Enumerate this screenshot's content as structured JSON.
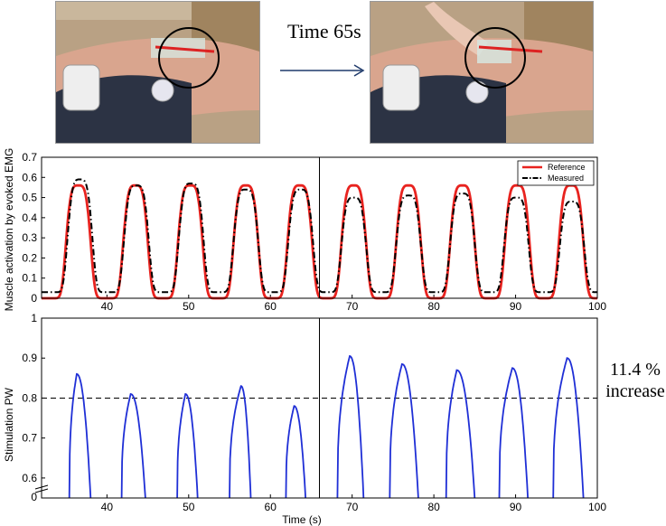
{
  "photos": {
    "time_label": "Time 65s"
  },
  "annotation": {
    "line1": "11.4 %",
    "line2": "increase"
  },
  "colors": {
    "reference": "#e8231f",
    "measured": "#000000",
    "pw": "#1f2fd6"
  },
  "chart_data": [
    {
      "type": "line",
      "title": "",
      "xlabel": "",
      "ylabel": "Muscle activation by evoked EMG",
      "xlim": [
        32,
        100
      ],
      "ylim": [
        0,
        0.7
      ],
      "x_ticks": [
        40,
        50,
        60,
        70,
        80,
        90,
        100
      ],
      "y_ticks": [
        0,
        0.1,
        0.2,
        0.3,
        0.4,
        0.5,
        0.6,
        0.7
      ],
      "y_tick_labels": [
        "0",
        "0.1",
        "0.2",
        "0.3",
        "0.4",
        "0.5",
        "0.6",
        "0.7"
      ],
      "legend": "top-right",
      "divider_x": 66,
      "series": [
        {
          "name": "Reference",
          "style": "solid",
          "baseline": 0.0,
          "peaks": [
            {
              "t": 36.5,
              "amp": 0.56
            },
            {
              "t": 43.5,
              "amp": 0.56
            },
            {
              "t": 50.2,
              "amp": 0.56
            },
            {
              "t": 57.0,
              "amp": 0.56
            },
            {
              "t": 63.6,
              "amp": 0.56
            },
            {
              "t": 70.2,
              "amp": 0.56
            },
            {
              "t": 76.9,
              "amp": 0.56
            },
            {
              "t": 83.5,
              "amp": 0.56
            },
            {
              "t": 90.2,
              "amp": 0.56
            },
            {
              "t": 96.8,
              "amp": 0.56
            }
          ]
        },
        {
          "name": "Measured",
          "style": "dash-dot",
          "baseline": 0.03,
          "peaks": [
            {
              "t": 36.7,
              "amp": 0.59
            },
            {
              "t": 43.6,
              "amp": 0.56
            },
            {
              "t": 50.3,
              "amp": 0.57
            },
            {
              "t": 57.0,
              "amp": 0.54
            },
            {
              "t": 63.7,
              "amp": 0.54
            },
            {
              "t": 70.2,
              "amp": 0.5
            },
            {
              "t": 76.9,
              "amp": 0.51
            },
            {
              "t": 83.5,
              "amp": 0.52
            },
            {
              "t": 90.1,
              "amp": 0.5
            },
            {
              "t": 96.9,
              "amp": 0.48
            }
          ]
        }
      ]
    },
    {
      "type": "line",
      "title": "",
      "xlabel": "Time (s)",
      "ylabel": "Stimulation PW",
      "xlim": [
        32,
        100
      ],
      "ylim": [
        0.55,
        1.0
      ],
      "x_ticks": [
        40,
        50,
        60,
        70,
        80,
        90,
        100
      ],
      "y_ticks": [
        0.6,
        0.7,
        0.8,
        0.9,
        1.0
      ],
      "y_tick_labels": [
        "0.6",
        "0.7",
        "0.8",
        "0.9",
        "1"
      ],
      "axis_origin_label": "0",
      "threshold": 0.8,
      "divider_x": 66,
      "series": [
        {
          "name": "",
          "bursts": [
            {
              "start": 35.4,
              "peak_t": 36.3,
              "peak": 0.86,
              "end": 38.0
            },
            {
              "start": 41.8,
              "peak_t": 42.9,
              "peak": 0.81,
              "end": 44.7
            },
            {
              "start": 48.6,
              "peak_t": 49.6,
              "peak": 0.81,
              "end": 51.1
            },
            {
              "start": 55.0,
              "peak_t": 56.4,
              "peak": 0.83,
              "end": 57.6
            },
            {
              "start": 61.9,
              "peak_t": 62.9,
              "peak": 0.78,
              "end": 64.3
            },
            {
              "start": 68.2,
              "peak_t": 69.7,
              "peak": 0.905,
              "end": 71.4
            },
            {
              "start": 74.6,
              "peak_t": 76.1,
              "peak": 0.885,
              "end": 78.1
            },
            {
              "start": 81.5,
              "peak_t": 82.8,
              "peak": 0.87,
              "end": 85.0
            },
            {
              "start": 88.0,
              "peak_t": 89.6,
              "peak": 0.875,
              "end": 91.5
            },
            {
              "start": 94.6,
              "peak_t": 96.3,
              "peak": 0.9,
              "end": 98.3
            }
          ]
        }
      ]
    }
  ]
}
